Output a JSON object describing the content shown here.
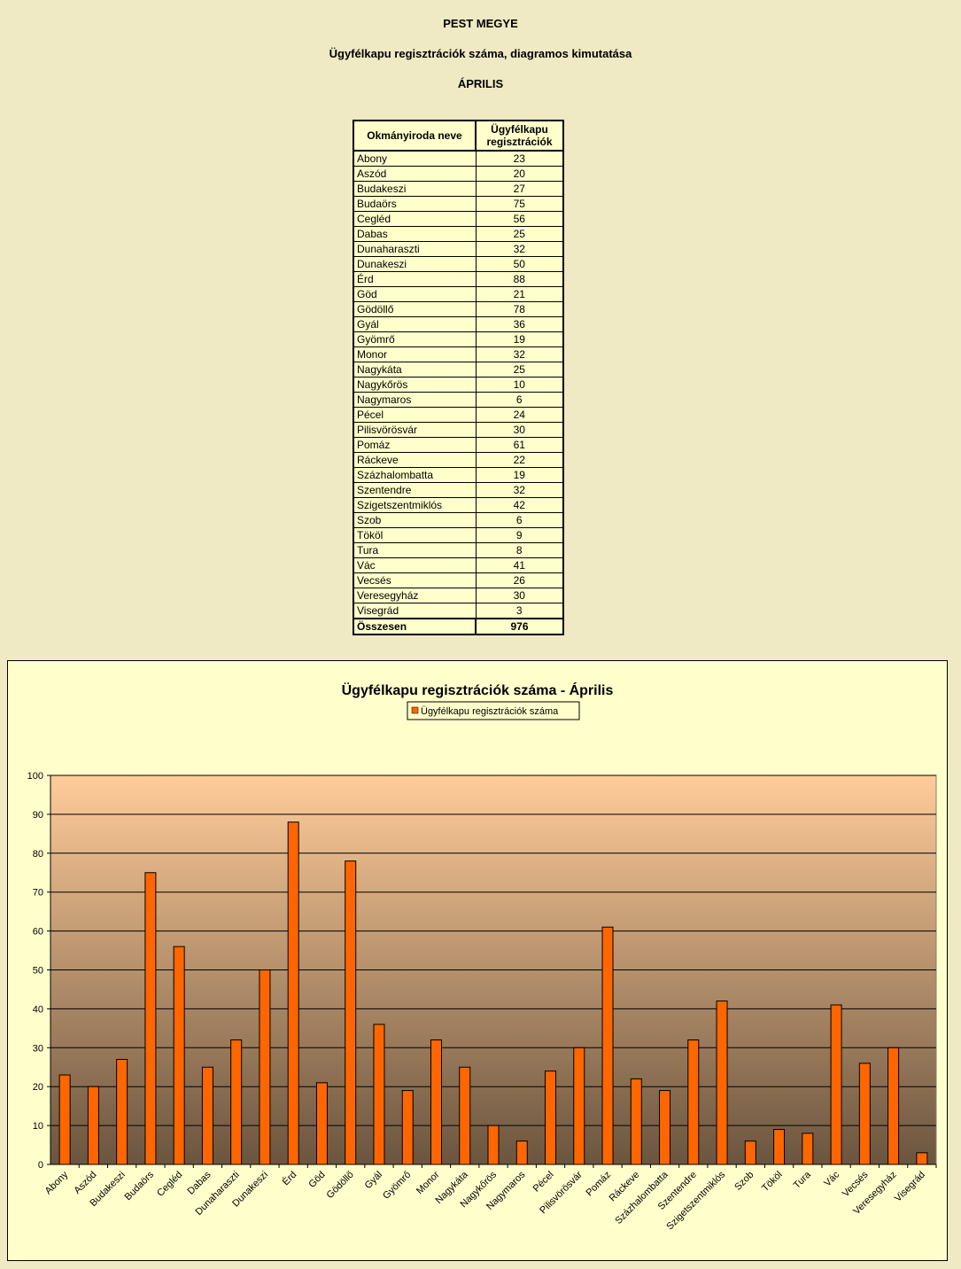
{
  "header": {
    "county": "PEST MEGYE",
    "subtitle": "Ügyfélkapu regisztrációk száma, diagramos kimutatása",
    "month": "ÁPRILIS"
  },
  "table": {
    "col1_header": "Okmányiroda neve",
    "col2_header_line1": "Ügyfélkapu",
    "col2_header_line2": "regisztrációk",
    "rows": [
      {
        "name": "Abony",
        "value": "23"
      },
      {
        "name": "Aszód",
        "value": "20"
      },
      {
        "name": "Budakeszi",
        "value": "27"
      },
      {
        "name": "Budaörs",
        "value": "75"
      },
      {
        "name": "Cegléd",
        "value": "56"
      },
      {
        "name": "Dabas",
        "value": "25"
      },
      {
        "name": "Dunaharaszti",
        "value": "32"
      },
      {
        "name": "Dunakeszi",
        "value": "50"
      },
      {
        "name": "Érd",
        "value": "88"
      },
      {
        "name": "Göd",
        "value": "21"
      },
      {
        "name": "Gödöllő",
        "value": "78"
      },
      {
        "name": "Gyál",
        "value": "36"
      },
      {
        "name": "Gyömrő",
        "value": "19"
      },
      {
        "name": "Monor",
        "value": "32"
      },
      {
        "name": "Nagykáta",
        "value": "25"
      },
      {
        "name": "Nagykőrös",
        "value": "10"
      },
      {
        "name": "Nagymaros",
        "value": "6"
      },
      {
        "name": "Pécel",
        "value": "24"
      },
      {
        "name": "Pilisvörösvár",
        "value": "30"
      },
      {
        "name": "Pomáz",
        "value": "61"
      },
      {
        "name": "Ráckeve",
        "value": "22"
      },
      {
        "name": "Százhalombatta",
        "value": "19"
      },
      {
        "name": "Szentendre",
        "value": "32"
      },
      {
        "name": "Szigetszentmiklós",
        "value": "42"
      },
      {
        "name": "Szob",
        "value": "6"
      },
      {
        "name": "Tököl",
        "value": "9"
      },
      {
        "name": "Tura",
        "value": "8"
      },
      {
        "name": "Vác",
        "value": "41"
      },
      {
        "name": "Vecsés",
        "value": "26"
      },
      {
        "name": "Veresegyház",
        "value": "30"
      },
      {
        "name": "Visegrád",
        "value": "3"
      }
    ],
    "total_label": "Összesen",
    "total_value": "976"
  },
  "chart_data": {
    "type": "bar",
    "title": "Ügyfélkapu regisztrációk száma - Április",
    "categories": [
      "Abony",
      "Aszód",
      "Budakeszi",
      "Budaörs",
      "Cegléd",
      "Dabas",
      "Dunaharaszti",
      "Dunakeszi",
      "Érd",
      "Göd",
      "Gödöllő",
      "Gyál",
      "Gyömrő",
      "Monor",
      "Nagykáta",
      "Nagykőrös",
      "Nagymaros",
      "Pécel",
      "Pilisvörösvár",
      "Pomáz",
      "Ráckeve",
      "Százhalombatta",
      "Szentendre",
      "Szigetszentmiklós",
      "Szob",
      "Tököl",
      "Tura",
      "Vác",
      "Vecsés",
      "Veresegyház",
      "Visegrád"
    ],
    "series": [
      {
        "name": "Ügyfélkapu regisztrációk száma",
        "values": [
          23,
          20,
          27,
          75,
          56,
          25,
          32,
          50,
          88,
          21,
          78,
          36,
          19,
          32,
          25,
          10,
          6,
          24,
          30,
          61,
          22,
          19,
          32,
          42,
          6,
          9,
          8,
          41,
          26,
          30,
          3
        ]
      }
    ],
    "xlabel": "",
    "ylabel": "",
    "ylim": [
      0,
      100
    ],
    "yticks": [
      0,
      10,
      20,
      30,
      40,
      50,
      60,
      70,
      80,
      90,
      100
    ],
    "grid": true,
    "legend": "top-center",
    "colors": {
      "bar": "#ff6600",
      "plot_top": "#ffcc99",
      "plot_bottom": "#6b553f",
      "background": "#ffffcc"
    }
  }
}
